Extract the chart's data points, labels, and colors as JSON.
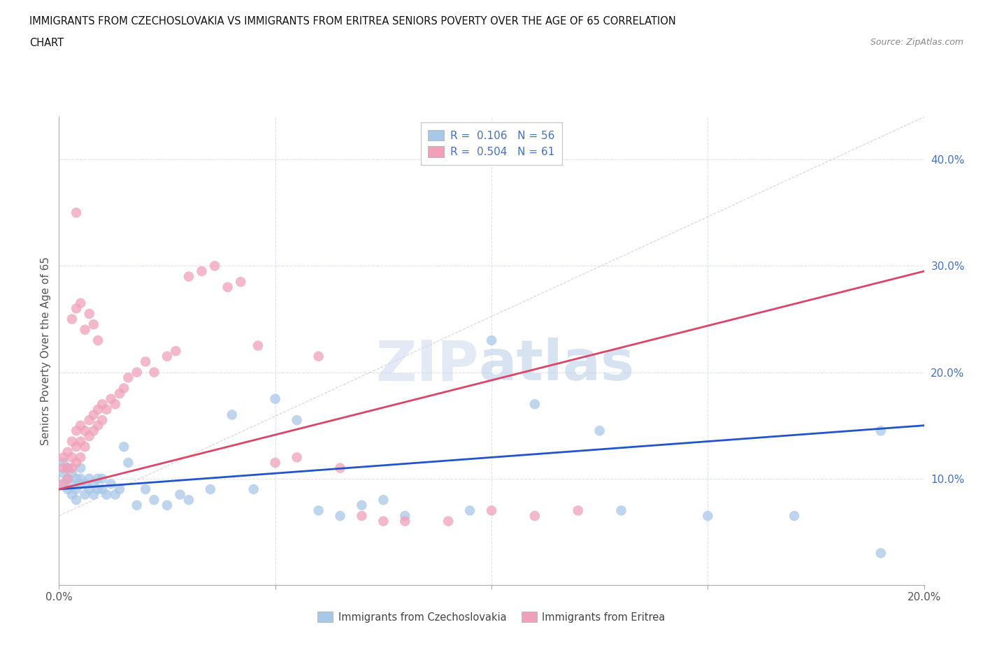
{
  "title_line1": "IMMIGRANTS FROM CZECHOSLOVAKIA VS IMMIGRANTS FROM ERITREA SENIORS POVERTY OVER THE AGE OF 65 CORRELATION",
  "title_line2": "CHART",
  "source": "Source: ZipAtlas.com",
  "ylabel": "Seniors Poverty Over the Age of 65",
  "legend_czechoslovakia": "Immigrants from Czechoslovakia",
  "legend_eritrea": "Immigrants from Eritrea",
  "R_czechoslovakia": 0.106,
  "N_czechoslovakia": 56,
  "R_eritrea": 0.504,
  "N_eritrea": 61,
  "color_czechoslovakia": "#a8c8e8",
  "color_eritrea": "#f0a0b8",
  "line_color_czechoslovakia": "#2255cc",
  "line_color_eritrea": "#dd4466",
  "xlim": [
    0.0,
    0.2
  ],
  "ylim": [
    0.0,
    0.44
  ],
  "background_color": "#ffffff",
  "grid_color": "#dde4f0",
  "czech_x": [
    0.001,
    0.001,
    0.001,
    0.002,
    0.002,
    0.002,
    0.003,
    0.003,
    0.003,
    0.004,
    0.004,
    0.004,
    0.005,
    0.005,
    0.005,
    0.006,
    0.006,
    0.007,
    0.007,
    0.008,
    0.008,
    0.009,
    0.009,
    0.01,
    0.01,
    0.011,
    0.012,
    0.013,
    0.014,
    0.015,
    0.016,
    0.018,
    0.02,
    0.022,
    0.025,
    0.028,
    0.03,
    0.035,
    0.04,
    0.045,
    0.05,
    0.055,
    0.06,
    0.065,
    0.07,
    0.075,
    0.08,
    0.095,
    0.1,
    0.11,
    0.125,
    0.13,
    0.15,
    0.17,
    0.19,
    0.19
  ],
  "czech_y": [
    0.095,
    0.105,
    0.115,
    0.09,
    0.1,
    0.11,
    0.095,
    0.085,
    0.105,
    0.1,
    0.09,
    0.08,
    0.095,
    0.11,
    0.1,
    0.085,
    0.095,
    0.09,
    0.1,
    0.085,
    0.095,
    0.09,
    0.1,
    0.09,
    0.1,
    0.085,
    0.095,
    0.085,
    0.09,
    0.13,
    0.115,
    0.075,
    0.09,
    0.08,
    0.075,
    0.085,
    0.08,
    0.09,
    0.16,
    0.09,
    0.175,
    0.155,
    0.07,
    0.065,
    0.075,
    0.08,
    0.065,
    0.07,
    0.23,
    0.17,
    0.145,
    0.07,
    0.065,
    0.065,
    0.145,
    0.03
  ],
  "eritrea_x": [
    0.001,
    0.001,
    0.001,
    0.002,
    0.002,
    0.002,
    0.003,
    0.003,
    0.003,
    0.004,
    0.004,
    0.004,
    0.005,
    0.005,
    0.005,
    0.006,
    0.006,
    0.007,
    0.007,
    0.008,
    0.008,
    0.009,
    0.009,
    0.01,
    0.01,
    0.011,
    0.012,
    0.013,
    0.014,
    0.015,
    0.016,
    0.018,
    0.02,
    0.022,
    0.025,
    0.027,
    0.03,
    0.033,
    0.036,
    0.039,
    0.042,
    0.046,
    0.05,
    0.055,
    0.06,
    0.065,
    0.07,
    0.075,
    0.08,
    0.09,
    0.1,
    0.11,
    0.12,
    0.003,
    0.004,
    0.004,
    0.005,
    0.006,
    0.007,
    0.008,
    0.009
  ],
  "eritrea_y": [
    0.095,
    0.11,
    0.12,
    0.1,
    0.11,
    0.125,
    0.11,
    0.12,
    0.135,
    0.115,
    0.13,
    0.145,
    0.12,
    0.135,
    0.15,
    0.13,
    0.145,
    0.14,
    0.155,
    0.145,
    0.16,
    0.15,
    0.165,
    0.155,
    0.17,
    0.165,
    0.175,
    0.17,
    0.18,
    0.185,
    0.195,
    0.2,
    0.21,
    0.2,
    0.215,
    0.22,
    0.29,
    0.295,
    0.3,
    0.28,
    0.285,
    0.225,
    0.115,
    0.12,
    0.215,
    0.11,
    0.065,
    0.06,
    0.06,
    0.06,
    0.07,
    0.065,
    0.07,
    0.25,
    0.35,
    0.26,
    0.265,
    0.24,
    0.255,
    0.245,
    0.23
  ],
  "czech_line_x": [
    0.0,
    0.2
  ],
  "czech_line_y": [
    0.09,
    0.15
  ],
  "eritrea_line_x": [
    0.0,
    0.2
  ],
  "eritrea_line_y": [
    0.09,
    0.295
  ],
  "dashed_line_x": [
    0.0,
    0.44
  ],
  "dashed_line_y": [
    0.09,
    0.44
  ]
}
